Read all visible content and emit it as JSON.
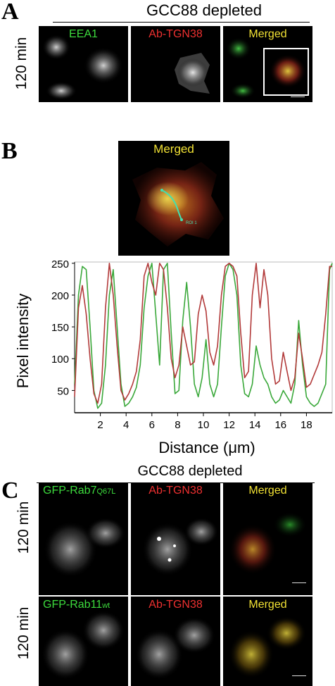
{
  "panel_a": {
    "letter": "A",
    "header": "GCC88 depleted",
    "row_label": "120 min",
    "images": [
      {
        "label": "EEA1",
        "color": "#3ddc3d"
      },
      {
        "label": "Ab-TGN38",
        "color": "#ee3030"
      },
      {
        "label": "Merged",
        "color": "#f2e234"
      }
    ]
  },
  "panel_b": {
    "letter": "B",
    "merged_label": "Merged",
    "roi_label": "ROI 1"
  },
  "chart_data": {
    "type": "line",
    "xlabel": "Distance (μm)",
    "ylabel": "Pixel intensity",
    "xlim": [
      0,
      20
    ],
    "ylim": [
      15,
      252
    ],
    "xticks": [
      2,
      4,
      6,
      8,
      10,
      12,
      14,
      16,
      18
    ],
    "yticks": [
      50,
      100,
      150,
      200,
      250
    ],
    "grid": false,
    "series": [
      {
        "color": "#3aa83a",
        "x": [
          0,
          0.3,
          0.6,
          0.9,
          1.2,
          1.5,
          1.8,
          2.1,
          2.4,
          2.7,
          3.0,
          3.3,
          3.6,
          3.9,
          4.2,
          4.5,
          4.8,
          5.1,
          5.4,
          5.7,
          6.0,
          6.3,
          6.6,
          6.9,
          7.2,
          7.5,
          7.8,
          8.1,
          8.4,
          8.7,
          9.0,
          9.3,
          9.6,
          9.9,
          10.2,
          10.5,
          10.8,
          11.1,
          11.4,
          11.7,
          12.0,
          12.3,
          12.6,
          12.9,
          13.2,
          13.5,
          13.8,
          14.1,
          14.4,
          14.7,
          15.0,
          15.3,
          15.6,
          15.9,
          16.2,
          16.5,
          16.8,
          17.1,
          17.4,
          17.7,
          18.0,
          18.3,
          18.6,
          18.9,
          19.2,
          19.5,
          19.8,
          20.0
        ],
        "y": [
          60,
          200,
          245,
          240,
          150,
          50,
          22,
          30,
          90,
          200,
          240,
          150,
          60,
          25,
          30,
          40,
          55,
          90,
          180,
          230,
          250,
          170,
          90,
          240,
          250,
          140,
          45,
          50,
          160,
          220,
          150,
          60,
          40,
          70,
          130,
          60,
          40,
          60,
          150,
          230,
          250,
          240,
          200,
          90,
          45,
          40,
          60,
          120,
          90,
          70,
          60,
          40,
          30,
          35,
          50,
          40,
          30,
          60,
          160,
          90,
          40,
          30,
          25,
          30,
          45,
          60,
          240,
          250
        ]
      },
      {
        "color": "#b23a3a",
        "x": [
          0,
          0.3,
          0.6,
          0.9,
          1.2,
          1.5,
          1.8,
          2.1,
          2.4,
          2.7,
          3.0,
          3.3,
          3.6,
          3.9,
          4.2,
          4.5,
          4.8,
          5.1,
          5.4,
          5.7,
          6.0,
          6.3,
          6.6,
          6.9,
          7.2,
          7.5,
          7.8,
          8.1,
          8.4,
          8.7,
          9.0,
          9.3,
          9.6,
          9.9,
          10.2,
          10.5,
          10.8,
          11.1,
          11.4,
          11.7,
          12.0,
          12.3,
          12.6,
          12.9,
          13.2,
          13.5,
          13.8,
          14.1,
          14.4,
          14.7,
          15.0,
          15.3,
          15.6,
          15.9,
          16.2,
          16.5,
          16.8,
          17.1,
          17.4,
          17.7,
          18.0,
          18.3,
          18.6,
          18.9,
          19.2,
          19.5,
          19.8,
          20.0
        ],
        "y": [
          40,
          180,
          215,
          170,
          100,
          45,
          30,
          60,
          180,
          250,
          200,
          120,
          50,
          35,
          45,
          60,
          80,
          130,
          230,
          250,
          220,
          200,
          250,
          240,
          180,
          100,
          70,
          90,
          150,
          120,
          90,
          95,
          170,
          200,
          175,
          110,
          90,
          120,
          200,
          245,
          250,
          245,
          230,
          140,
          70,
          80,
          200,
          250,
          180,
          240,
          200,
          100,
          60,
          65,
          110,
          80,
          50,
          70,
          140,
          100,
          55,
          60,
          75,
          90,
          110,
          170,
          245,
          245
        ]
      }
    ]
  },
  "panel_c": {
    "letter": "C",
    "header": "GCC88 depleted",
    "rows": [
      {
        "row_label": "120 min",
        "gfp_main": "GFP-Rab7",
        "gfp_sub": "Q67L",
        "tgn_label": "Ab-TGN38",
        "merged_label": "Merged"
      },
      {
        "row_label": "120 min",
        "gfp_main": "GFP-Rab11",
        "gfp_sub": "wt",
        "tgn_label": "Ab-TGN38",
        "merged_label": "Merged"
      }
    ]
  }
}
